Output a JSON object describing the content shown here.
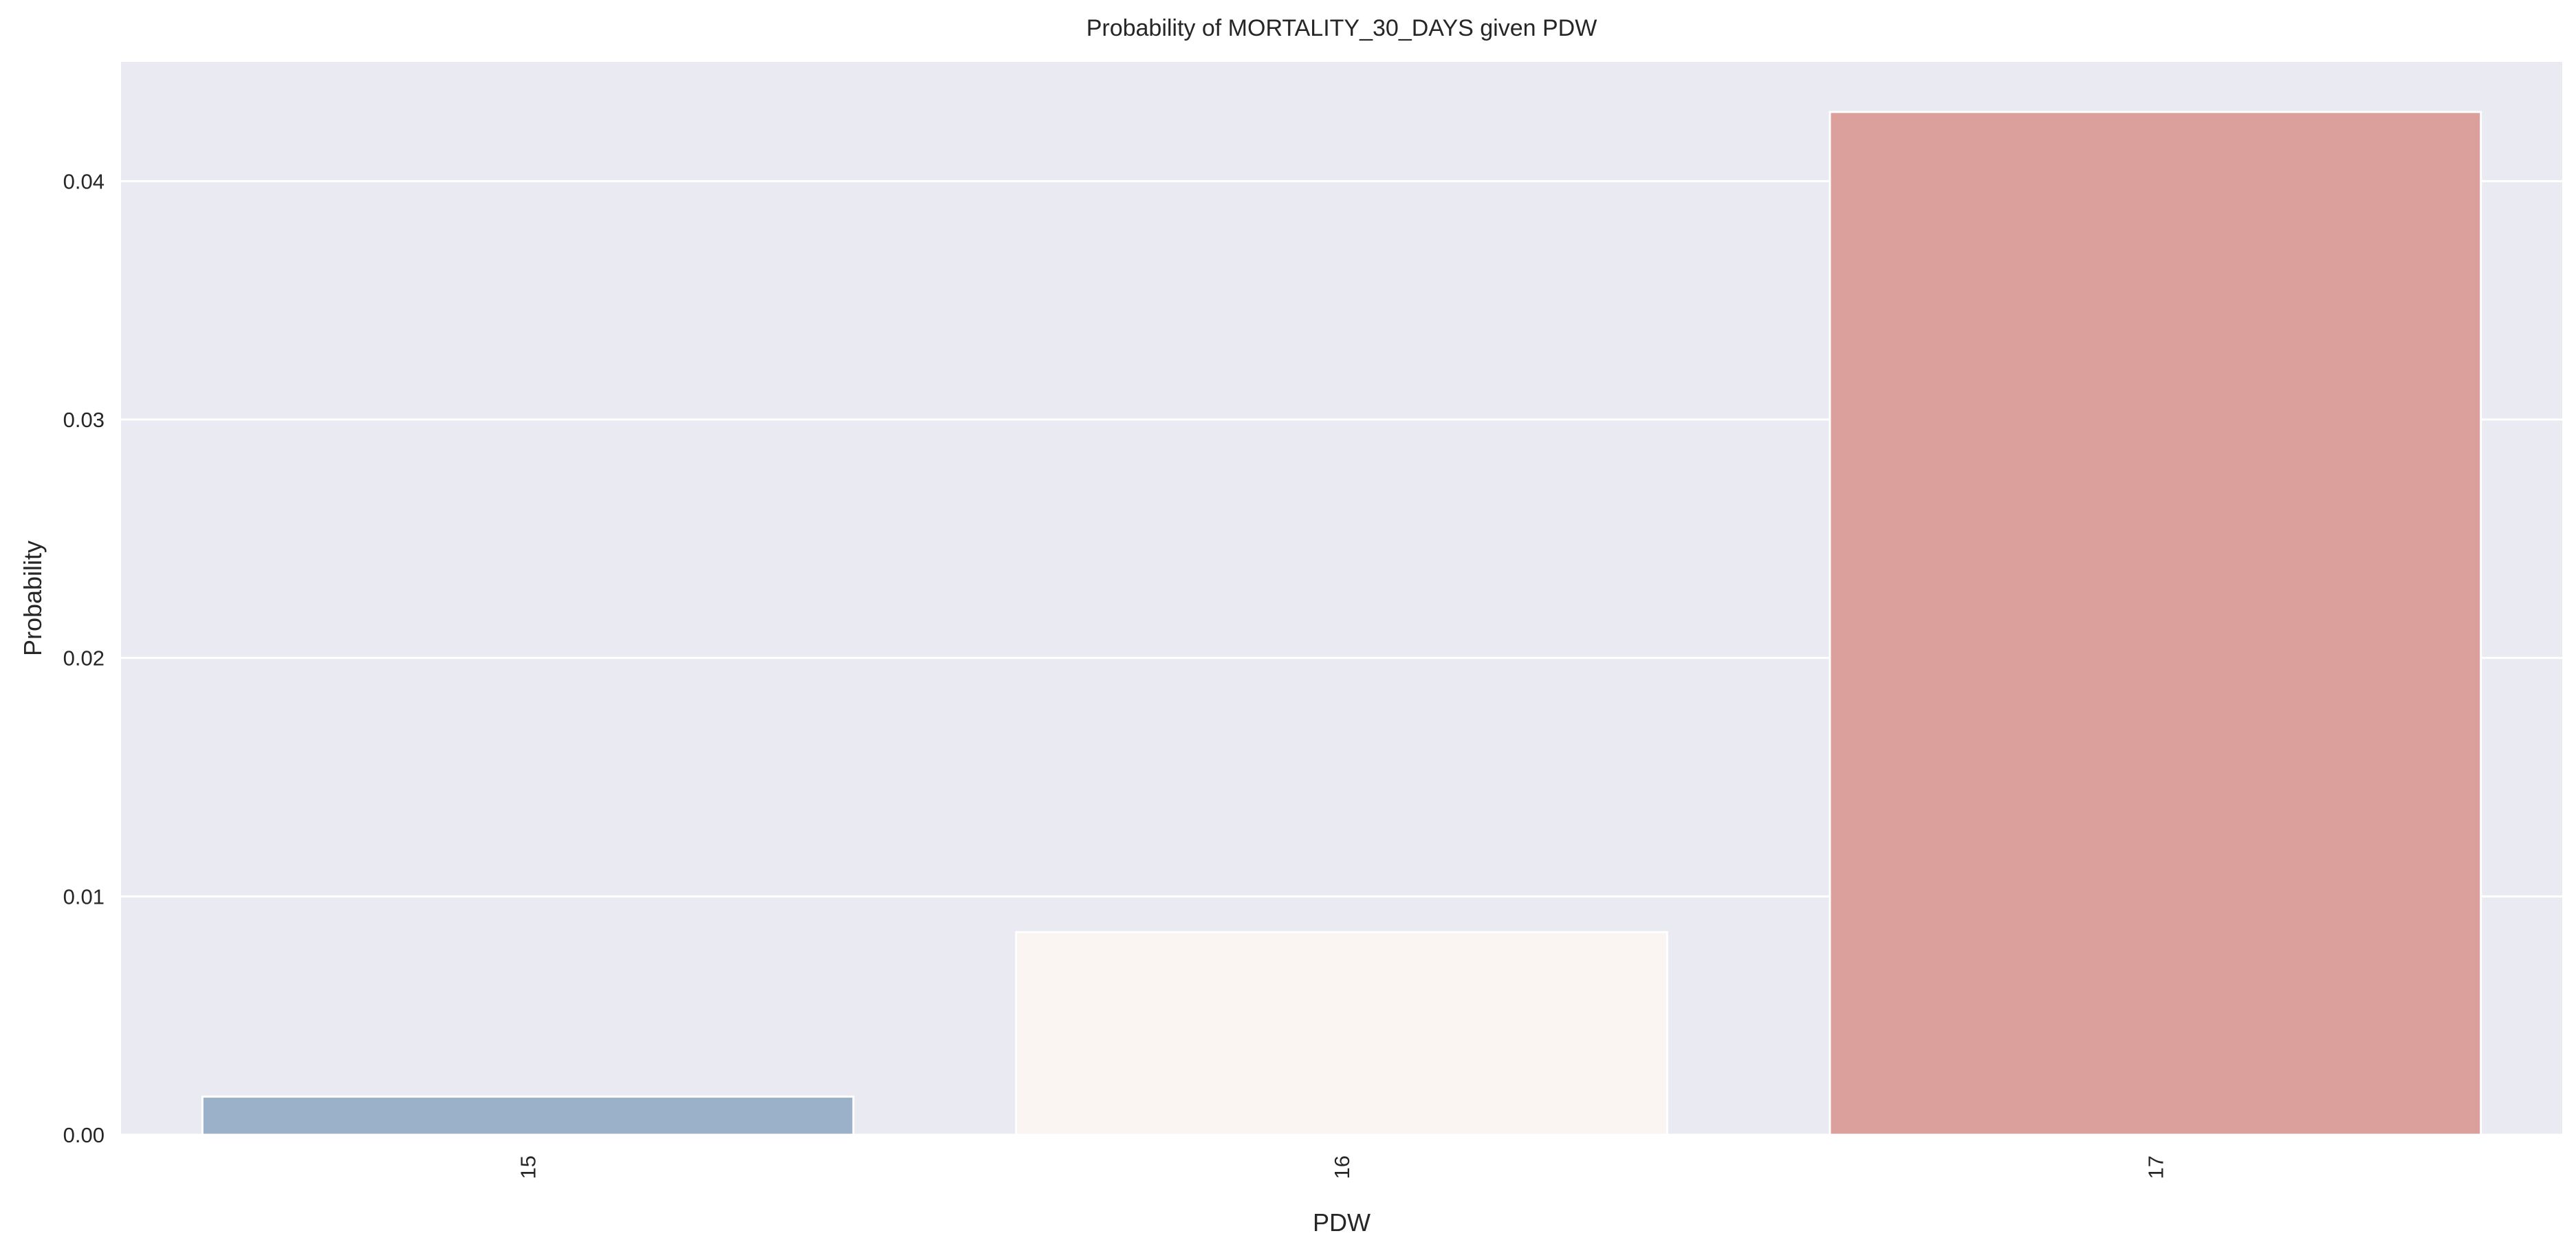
{
  "chart_data": {
    "type": "bar",
    "title": "Probability of MORTALITY_30_DAYS given PDW",
    "xlabel": "PDW",
    "ylabel": "Probability",
    "categories": [
      "15",
      "16",
      "17"
    ],
    "values": [
      0.0016,
      0.0085,
      0.0429
    ],
    "ylim": [
      0,
      0.045
    ],
    "yticks": [
      0.0,
      0.01,
      0.02,
      0.03,
      0.04
    ],
    "ytick_labels": [
      "0.00",
      "0.01",
      "0.02",
      "0.03",
      "0.04"
    ],
    "xtick_rotation": "vertical",
    "grid": true,
    "legend": "none",
    "bar_colors": [
      "#9bb0c9",
      "#faf5f2",
      "#dba09c"
    ],
    "colors": {
      "plot_background": "#e9eaf2",
      "grid": "#ffffff",
      "bar_edge": "#ffffff",
      "text": "#262626"
    }
  }
}
